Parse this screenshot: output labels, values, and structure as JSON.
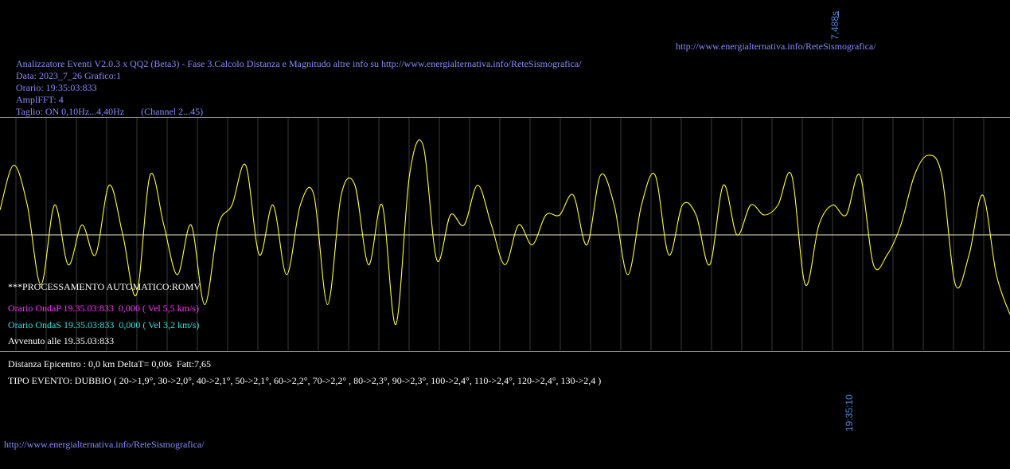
{
  "header": {
    "top_url": "http://www.energialternativa.info/ReteSismografica/",
    "title_line": "Analizzatore Eventi V2.0.3 x QQ2 (Beta3) - Fase 3.Calcolo Distanza e Magnitudo altre info su http://www.energialternativa.info/ReteSismografica/",
    "date_line": "Data: 2023_7_26 Grafico:1",
    "time_line": "Orario: 19:35:03:833",
    "ampl_line": "AmplFFT: 4",
    "cut_line": "Taglio: ON 0,10Hz...4,40Hz       (Channel 2...45)"
  },
  "axis": {
    "scale_top": "7,488s",
    "time_bottom": "19:35:10"
  },
  "info": {
    "processing": "***PROCESSAMENTO AUTOMATICO:ROMV",
    "onda_p": "Orario OndaP 19.35.03:833  0,000 ( Vel 5,5 km/s)",
    "onda_s": "Orario OndaS 19.35.03:833  0,000 ( Vel 3,2 km/s)",
    "avvenuto": "Avvenuto alle 19.35.03:833",
    "distanza": "Distanza Epicentro : 0,0 km DeltaT= 0,00s  Fatt:7,65",
    "tipo_evento": "TIPO EVENTO: DUBBIO ( 20->1,9°, 30->2,0°, 40->2,1°, 50->2,1°, 60->2,2°, 70->2,2° , 80->2,3°, 90->2,3°, 100->2,4°, 110->2,4°, 120->2,4°, 130->2,4 )"
  },
  "footer": {
    "bottom_url": "http://www.energialternativa.info/ReteSismografica/"
  },
  "colors": {
    "background": "#000000",
    "trace": "#ffff33",
    "grid": "#3a3a3a",
    "baseline": "#e8e8c0",
    "label_blue": "#8a8aff"
  },
  "chart_data": {
    "type": "line",
    "title": "",
    "xlabel": "",
    "ylabel": "",
    "grid": true,
    "series": [
      {
        "values": [
          0.25,
          0.7,
          0.3,
          -0.5,
          0.3,
          -0.3,
          0.1,
          -0.2,
          0.5,
          0.0,
          -0.6,
          0.6,
          0.1,
          -0.4,
          0.1,
          -0.7,
          0.1,
          0.3,
          0.7,
          -0.2,
          0.3,
          -0.4,
          0.3,
          0.4,
          -0.7,
          0.4,
          0.5,
          -0.3,
          0.3,
          -0.9,
          0.6,
          0.9,
          -0.25,
          0.2,
          0.1,
          0.5,
          0.1,
          -0.3,
          0.1,
          -0.1,
          0.2,
          0.2,
          0.4,
          -0.1,
          0.6,
          0.3,
          -0.4,
          0.3,
          0.6,
          -0.2,
          0.3,
          0.2,
          -0.3,
          0.5,
          0.0,
          0.3,
          0.2,
          0.3,
          0.6,
          -0.5,
          0.1,
          0.3,
          0.2,
          0.6,
          -0.3,
          -0.2,
          0.1,
          0.6,
          0.8,
          0.6,
          -0.5,
          -0.2,
          0.4,
          -0.4,
          -0.8
        ]
      }
    ]
  }
}
